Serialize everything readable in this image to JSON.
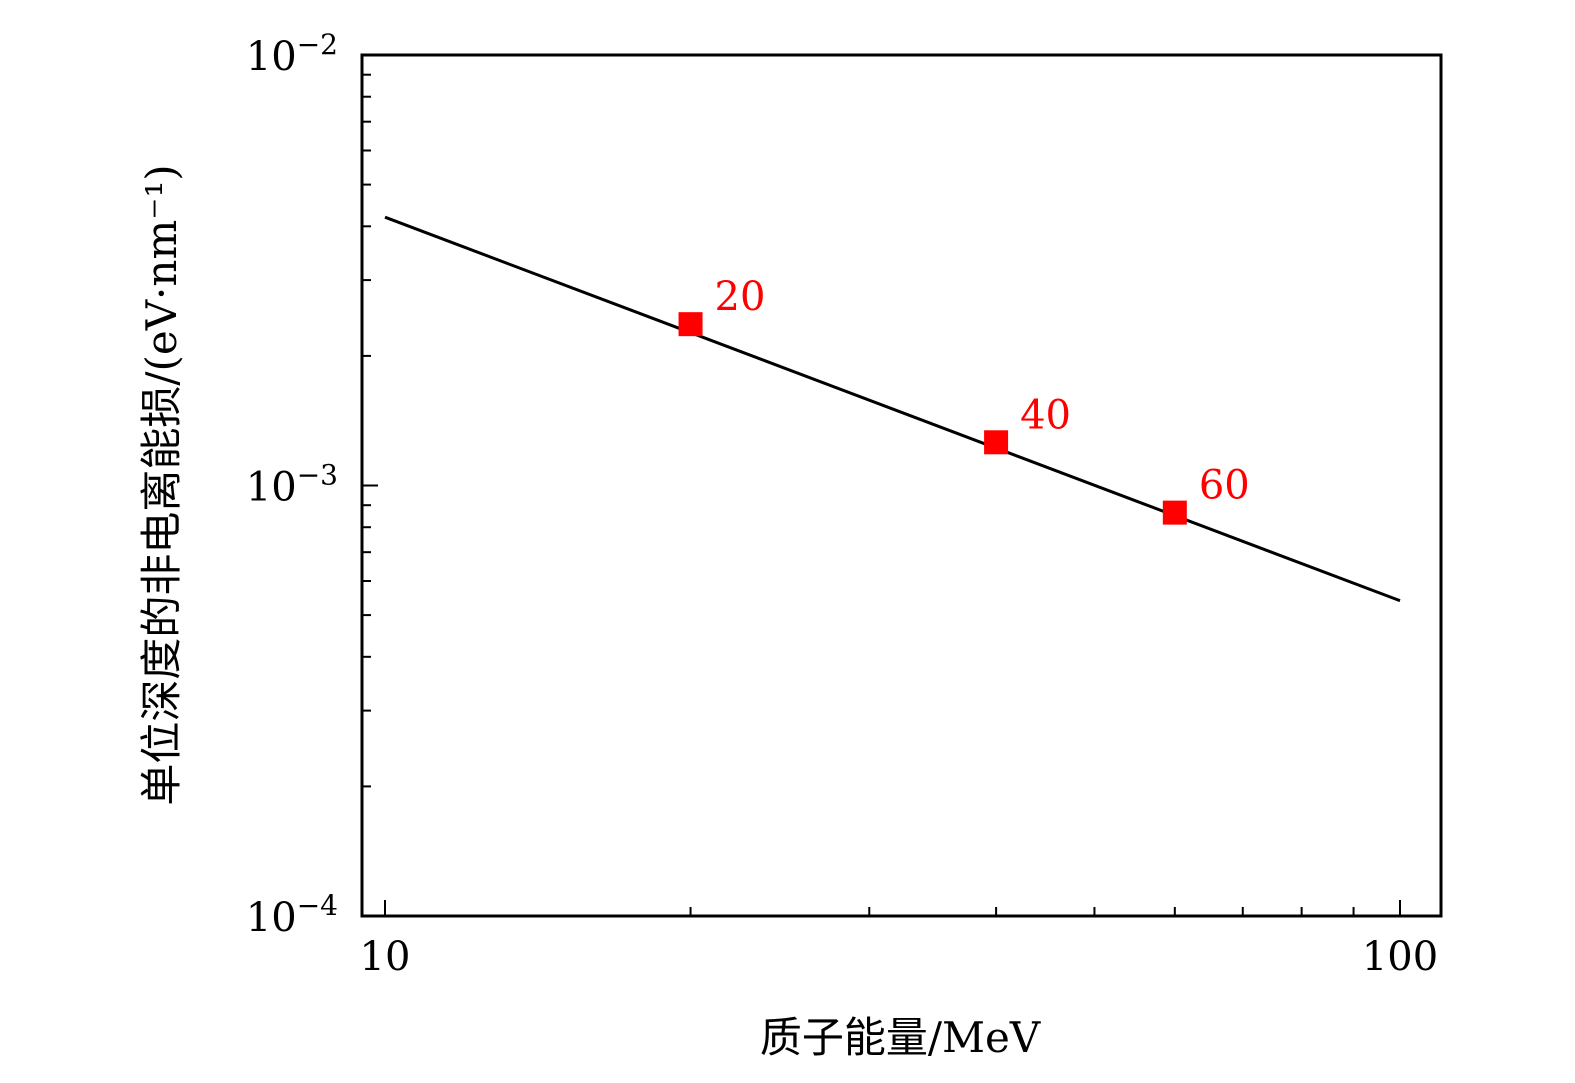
{
  "chart_data": {
    "type": "line",
    "xlabel": "质子能量/MeV",
    "ylabel": "单位深度的非电离能损/(eV·nm⁻¹)",
    "x_scale": "log",
    "y_scale": "log",
    "xlim": [
      10,
      100
    ],
    "ylim": [
      0.0001,
      0.01
    ],
    "x_ticks": [
      {
        "value": 10,
        "label": "10"
      },
      {
        "value": 100,
        "label": "100"
      }
    ],
    "y_ticks": [
      {
        "value": 0.01,
        "base": "10",
        "exp": "−2"
      },
      {
        "value": 0.001,
        "base": "10",
        "exp": "−3"
      },
      {
        "value": 0.0001,
        "base": "10",
        "exp": "−4"
      }
    ],
    "grid": false,
    "series": [
      {
        "type": "line",
        "color": "#000000",
        "x": [
          10,
          100
        ],
        "y": [
          0.0042,
          0.00054
        ]
      },
      {
        "type": "scatter",
        "marker": "square",
        "color": "#ff0000",
        "x": [
          20,
          40,
          60
        ],
        "y": [
          0.00237,
          0.00126,
          0.000865
        ],
        "labels": [
          "20",
          "40",
          "60"
        ]
      }
    ]
  }
}
